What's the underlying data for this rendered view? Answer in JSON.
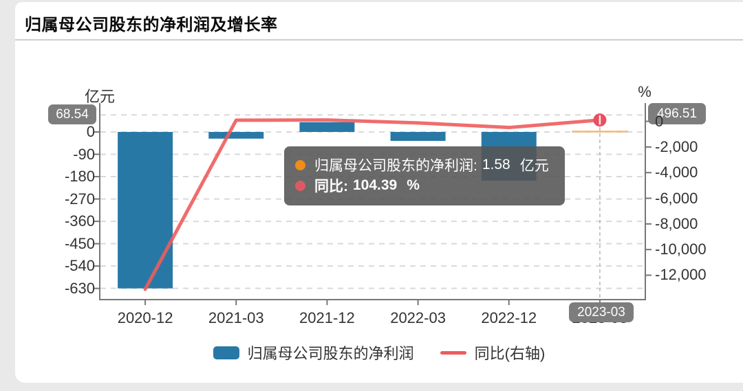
{
  "page": {
    "title": "归属母公司股东的净利润及增长率"
  },
  "chart": {
    "left_axis": {
      "unit_label": "亿元",
      "max_badge": "68.54",
      "tick_labels": [
        "0",
        "-90",
        "-180",
        "-270",
        "-360",
        "-450",
        "-540",
        "-630"
      ]
    },
    "right_axis": {
      "unit_label": "%",
      "max_badge": "496.51",
      "tick_labels": [
        "0",
        "-2,000",
        "-4,000",
        "-6,000",
        "-8,000",
        "-10,000",
        "-12,000"
      ]
    },
    "x_axis": {
      "labels": [
        "2020-12",
        "2021-03",
        "2021-12",
        "2022-03",
        "2022-12",
        "2023-03"
      ],
      "highlight_badge": "2023-03"
    },
    "tooltip": {
      "row1": {
        "label": "归属母公司股东的净利润:",
        "value": "1.58",
        "unit": "亿元"
      },
      "row2": {
        "label": "同比:",
        "value": "104.39",
        "unit": "%"
      }
    },
    "legend": [
      {
        "label": "归属母公司股东的净利润",
        "type": "bar"
      },
      {
        "label": "同比(右轴)",
        "type": "line"
      }
    ],
    "colors": {
      "bar": "#2878a6",
      "bar_highlight": "#f4b468",
      "line": "#ee5c5c",
      "marker": "#e84f5f",
      "badge_bg": "#7d7d7d",
      "badge_text": "#ffffff",
      "tooltip_bg": "rgba(84,84,84,0.88)",
      "dot_bar": "#f08c1a",
      "dot_line": "#dd5a64",
      "grid": "#d9d9d9",
      "axis_line": "#767676",
      "axis_text": "#333333"
    }
  },
  "chart_data": {
    "type": "combo_bar_line",
    "title": "归属母公司股东的净利润及增长率",
    "categories": [
      "2020-12",
      "2021-03",
      "2021-12",
      "2022-03",
      "2022-12",
      "2023-03"
    ],
    "series": [
      {
        "name": "归属母公司股东的净利润",
        "type": "bar",
        "axis": "left",
        "unit": "亿元",
        "values": [
          -630,
          -27,
          39,
          -36,
          -196,
          1.58
        ]
      },
      {
        "name": "同比(右轴)",
        "type": "line",
        "axis": "right",
        "unit": "%",
        "values": [
          -13100,
          90,
          105,
          -120,
          -480,
          104.39
        ]
      }
    ],
    "left_axis": {
      "label": "亿元",
      "max": 68.54,
      "ticks": [
        0,
        -90,
        -180,
        -270,
        -360,
        -450,
        -540,
        -630
      ]
    },
    "right_axis": {
      "label": "%",
      "max": 496.51,
      "ticks": [
        0,
        -2000,
        -4000,
        -6000,
        -8000,
        -10000,
        -12000
      ]
    },
    "grid": true,
    "legend_position": "bottom",
    "highlighted_category": "2023-03",
    "tooltip_point": {
      "category": "2023-03",
      "net_profit_yi_yuan": 1.58,
      "yoy_pct": 104.39
    }
  }
}
